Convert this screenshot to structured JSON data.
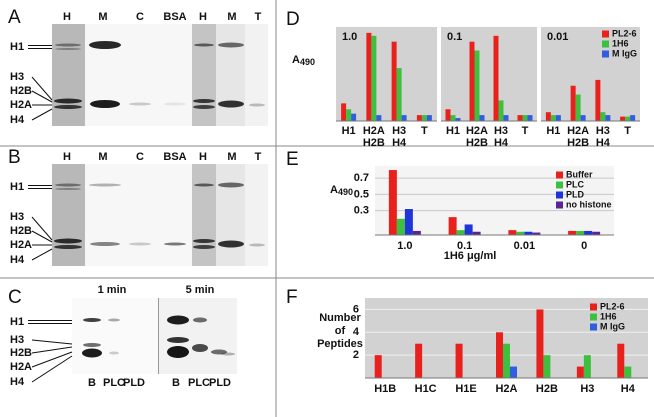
{
  "gels": {
    "A": {
      "label": "A",
      "lanes": [
        "H",
        "M",
        "C",
        "BSA",
        "H",
        "M",
        "T"
      ],
      "bands": [
        "H1",
        "H3",
        "H2B",
        "H2A",
        "H4"
      ]
    },
    "B": {
      "label": "B",
      "lanes": [
        "H",
        "M",
        "C",
        "BSA",
        "H",
        "M",
        "T"
      ],
      "bands": [
        "H1",
        "H3",
        "H2B",
        "H2A",
        "H4"
      ]
    },
    "C": {
      "label": "C",
      "times": [
        "1 min",
        "5 min"
      ],
      "lanes": [
        "B",
        "PLC",
        "PLD",
        "B",
        "PLC",
        "PLD"
      ],
      "bands": [
        "H1",
        "H3",
        "H2B",
        "H2A",
        "H4"
      ]
    }
  },
  "chart_data": [
    {
      "type": "grouped-bar-panels",
      "label": "D",
      "ylabel": [
        "A",
        "490"
      ],
      "subtitles": [
        "1.0",
        "0.1",
        "0.01"
      ],
      "categories": [
        [
          "H1"
        ],
        [
          "H2A",
          "H2B"
        ],
        [
          "H3",
          "H4"
        ],
        [
          "T"
        ]
      ],
      "ylim": [
        0,
        3.2
      ],
      "legend": "upper right",
      "series": [
        {
          "name": "PL2-6",
          "color": "#e8211c",
          "values": [
            [
              0.6,
              3.0,
              2.7,
              0.2
            ],
            [
              0.4,
              2.7,
              2.9,
              0.2
            ],
            [
              0.3,
              1.2,
              1.4,
              0.15
            ]
          ]
        },
        {
          "name": "1H6",
          "color": "#3fbf3f",
          "values": [
            [
              0.4,
              2.9,
              1.8,
              0.2
            ],
            [
              0.2,
              2.4,
              0.7,
              0.2
            ],
            [
              0.2,
              0.9,
              0.3,
              0.15
            ]
          ]
        },
        {
          "name": "M IgG",
          "color": "#2f5fe0",
          "values": [
            [
              0.25,
              0.2,
              0.2,
              0.2
            ],
            [
              0.1,
              0.2,
              0.2,
              0.2
            ],
            [
              0.2,
              0.2,
              0.2,
              0.2
            ]
          ]
        }
      ]
    },
    {
      "type": "bar",
      "label": "E",
      "ylabel": [
        "A",
        "490"
      ],
      "xlabel": "1H6 μg/ml",
      "categories": [
        "1.0",
        "0.1",
        "0.01",
        "0"
      ],
      "ylim": [
        0,
        0.85
      ],
      "yticks": [
        0.3,
        0.5,
        0.7
      ],
      "grid": true,
      "legend": "upper right",
      "series": [
        {
          "name": "Buffer",
          "color": "#e8211c",
          "values": [
            0.8,
            0.22,
            0.06,
            0.05
          ]
        },
        {
          "name": "PLC",
          "color": "#3fbf3f",
          "values": [
            0.2,
            0.06,
            0.04,
            0.05
          ]
        },
        {
          "name": "PLD",
          "color": "#1f35d8",
          "values": [
            0.32,
            0.13,
            0.04,
            0.05
          ]
        },
        {
          "name": "no histone",
          "color": "#5a2590",
          "values": [
            0.05,
            0.04,
            0.03,
            0.04
          ]
        }
      ]
    },
    {
      "type": "bar",
      "label": "F",
      "ylabel": [
        "Number",
        "of",
        "Peptides"
      ],
      "categories": [
        "H1B",
        "H1C",
        "H1E",
        "H2A",
        "H2B",
        "H3",
        "H4"
      ],
      "ylim": [
        0,
        7
      ],
      "yticks": [
        2,
        4,
        6
      ],
      "grid": true,
      "legend": "upper right",
      "series": [
        {
          "name": "PL2-6",
          "color": "#e8211c",
          "values": [
            2,
            3,
            3,
            4,
            6,
            1,
            3
          ]
        },
        {
          "name": "1H6",
          "color": "#3fbf3f",
          "values": [
            0,
            0,
            0,
            3,
            2,
            2,
            1
          ]
        },
        {
          "name": "M IgG",
          "color": "#2f5fe0",
          "values": [
            0,
            0,
            0,
            1,
            0,
            0,
            0
          ]
        }
      ]
    }
  ]
}
